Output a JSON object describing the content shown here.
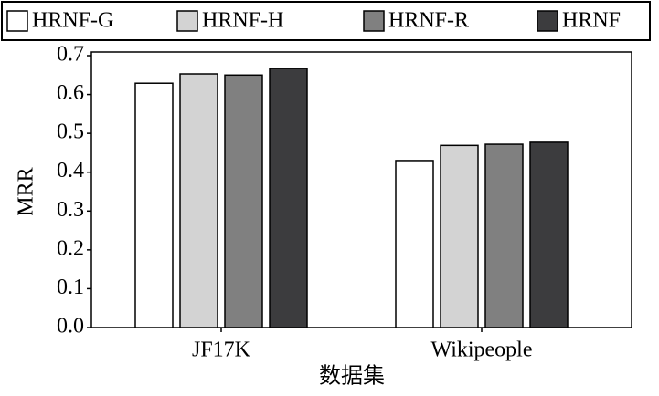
{
  "chart_data": {
    "type": "bar",
    "y_label": "MRR",
    "x_label": "数据集",
    "categories": [
      "JF17K",
      "Wikipeople"
    ],
    "series": [
      {
        "name": "HRNF-G",
        "color": "#ffffff",
        "values": [
          0.629,
          0.43
        ]
      },
      {
        "name": "HRNF-H",
        "color": "#d3d3d3",
        "values": [
          0.653,
          0.469
        ]
      },
      {
        "name": "HRNF-R",
        "color": "#808080",
        "values": [
          0.65,
          0.472
        ]
      },
      {
        "name": "HRNF",
        "color": "#3c3c3e",
        "values": [
          0.667,
          0.477
        ]
      }
    ],
    "ylim": [
      0,
      0.7
    ],
    "yticks": [
      {
        "value": 0,
        "label": "0.0"
      },
      0.1,
      0.2,
      0.3,
      0.4,
      0.5,
      0.6,
      0.7
    ],
    "legend": "top"
  }
}
